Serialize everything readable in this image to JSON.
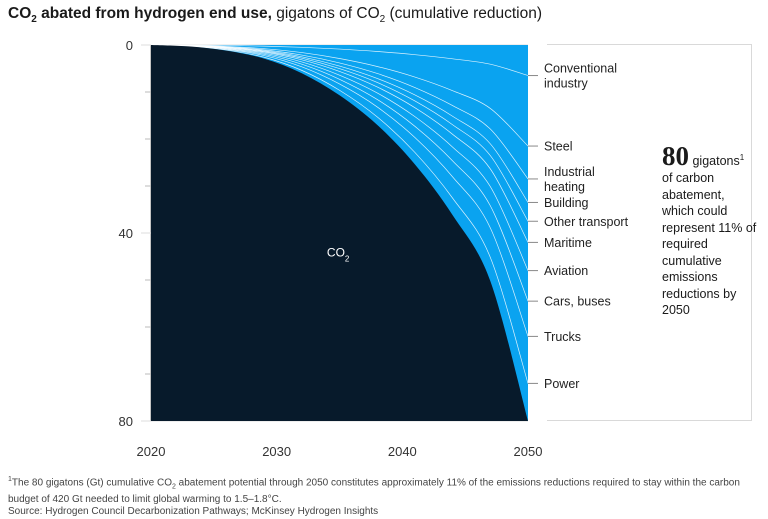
{
  "title": {
    "bold_prefix": "CO",
    "bold_sub": "2",
    "bold_suffix": " abated from hydrogen end use,",
    "light_prefix": " gigatons of CO",
    "light_sub": "2",
    "light_suffix": " (cumulative reduction)"
  },
  "colors": {
    "co2_area": "#071a2b",
    "abatement_area": "#0aa3f0",
    "stream_lines": "#ffffff",
    "gridline": "#dcdcdc",
    "axis_text": "#333333"
  },
  "chart_data": {
    "type": "area",
    "x_range": [
      2020,
      2050
    ],
    "y_range": [
      0,
      80
    ],
    "y_inverted": true,
    "x_ticks": [
      "2020",
      "2030",
      "2040",
      "2050"
    ],
    "y_ticks": [
      "0",
      "40",
      "80"
    ],
    "x_tick_values": [
      2020,
      2030,
      2040,
      2050
    ],
    "y_tick_values": [
      0,
      40,
      80
    ],
    "co2_boundary_series": [
      {
        "x": 2020,
        "y": 0
      },
      {
        "x": 2023,
        "y": 0.3
      },
      {
        "x": 2026,
        "y": 1.2
      },
      {
        "x": 2029,
        "y": 2.9
      },
      {
        "x": 2032,
        "y": 6
      },
      {
        "x": 2035,
        "y": 10.7
      },
      {
        "x": 2038,
        "y": 17
      },
      {
        "x": 2041,
        "y": 25.4
      },
      {
        "x": 2044,
        "y": 36.2
      },
      {
        "x": 2047,
        "y": 50.2
      },
      {
        "x": 2050,
        "y": 80
      }
    ],
    "area_label": {
      "text": "CO",
      "sub": "2",
      "x": 2034,
      "y": 45
    },
    "categories": [
      {
        "name": "Conventional industry",
        "lines": [
          "Conventional",
          "industry"
        ],
        "end_value": 6.5
      },
      {
        "name": "Steel",
        "lines": [
          "Steel"
        ],
        "end_value": 21.5
      },
      {
        "name": "Industrial heating",
        "lines": [
          "Industrial",
          "heating"
        ],
        "end_value": 28.5
      },
      {
        "name": "Building",
        "lines": [
          "Building"
        ],
        "end_value": 33.5
      },
      {
        "name": "Other transport",
        "lines": [
          "Other transport"
        ],
        "end_value": 37.5
      },
      {
        "name": "Maritime",
        "lines": [
          "Maritime"
        ],
        "end_value": 42
      },
      {
        "name": "Aviation",
        "lines": [
          "Aviation"
        ],
        "end_value": 48
      },
      {
        "name": "Cars, buses",
        "lines": [
          "Cars, buses"
        ],
        "end_value": 54.5
      },
      {
        "name": "Trucks",
        "lines": [
          "Trucks"
        ],
        "end_value": 62
      },
      {
        "name": "Power",
        "lines": [
          "Power"
        ],
        "end_value": 72
      }
    ]
  },
  "callout": {
    "number": "80",
    "unit": "gigatons",
    "footnote_mark": "1",
    "text": "of carbon abatement, which could represent 11% of required cumulative emissions reductions by 2050"
  },
  "footnote": {
    "mark": "1",
    "part1": "The 80 gigatons (Gt) cumulative CO",
    "sub": "2",
    "part2": " abatement potential through 2050 constitutes approximately 11% of the emissions reductions required to stay within the carbon budget of 420 Gt needed to limit global warming to 1.5–1.8°C.",
    "source": "Source: Hydrogen Council Decarbonization Pathways; McKinsey Hydrogen Insights"
  }
}
